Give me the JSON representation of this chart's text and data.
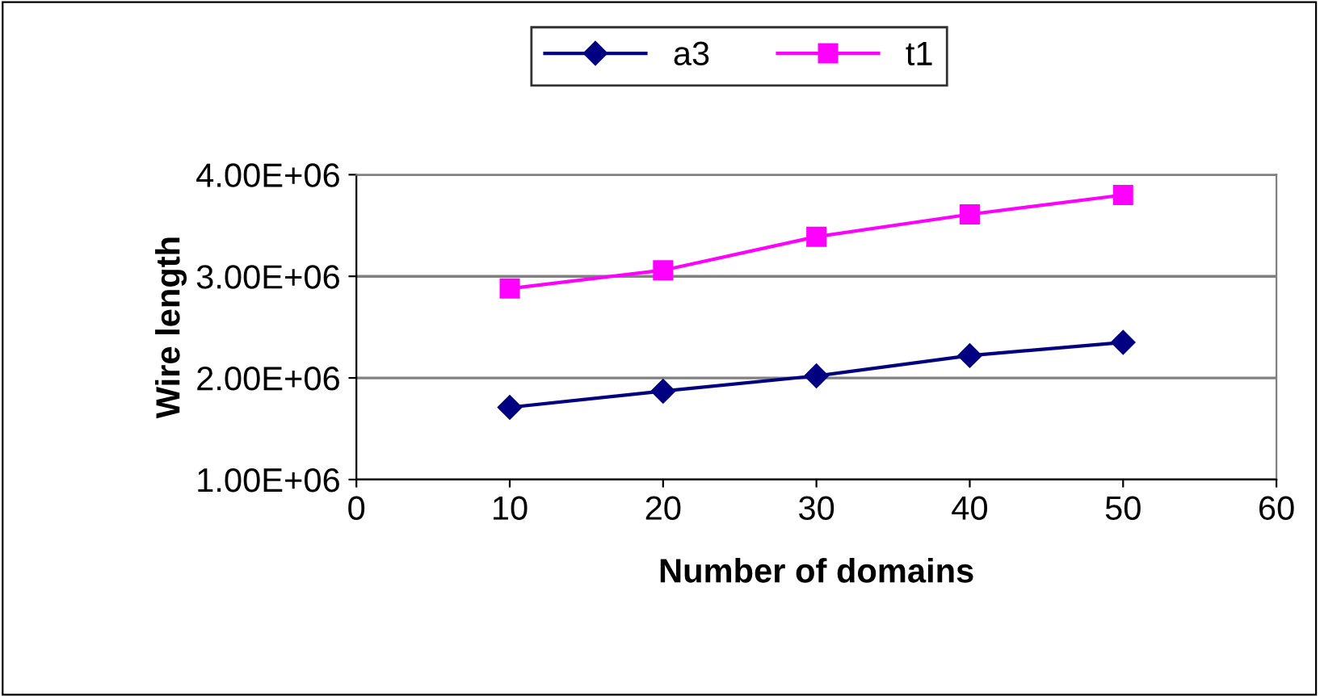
{
  "chart_data": {
    "type": "line",
    "xlabel": "Number of domains",
    "ylabel": "Wire length",
    "x": [
      10,
      20,
      30,
      40,
      50
    ],
    "series": [
      {
        "name": "a3",
        "color": "#000080",
        "marker": "diamond",
        "values": [
          1710000,
          1870000,
          2020000,
          2220000,
          2350000
        ]
      },
      {
        "name": "t1",
        "color": "#ff00ff",
        "marker": "square",
        "values": [
          2880000,
          3060000,
          3390000,
          3610000,
          3800000
        ]
      }
    ],
    "xlim": [
      0,
      60
    ],
    "xticks": [
      0,
      10,
      20,
      30,
      40,
      50,
      60
    ],
    "ylim": [
      1000000,
      4000000
    ],
    "yticks": [
      {
        "value": 1000000,
        "label": "1.00E+06"
      },
      {
        "value": 2000000,
        "label": "2.00E+06"
      },
      {
        "value": 3000000,
        "label": "3.00E+06"
      },
      {
        "value": 4000000,
        "label": "4.00E+06"
      }
    ],
    "grid": "y",
    "legend": "top",
    "line_style": "solid"
  }
}
